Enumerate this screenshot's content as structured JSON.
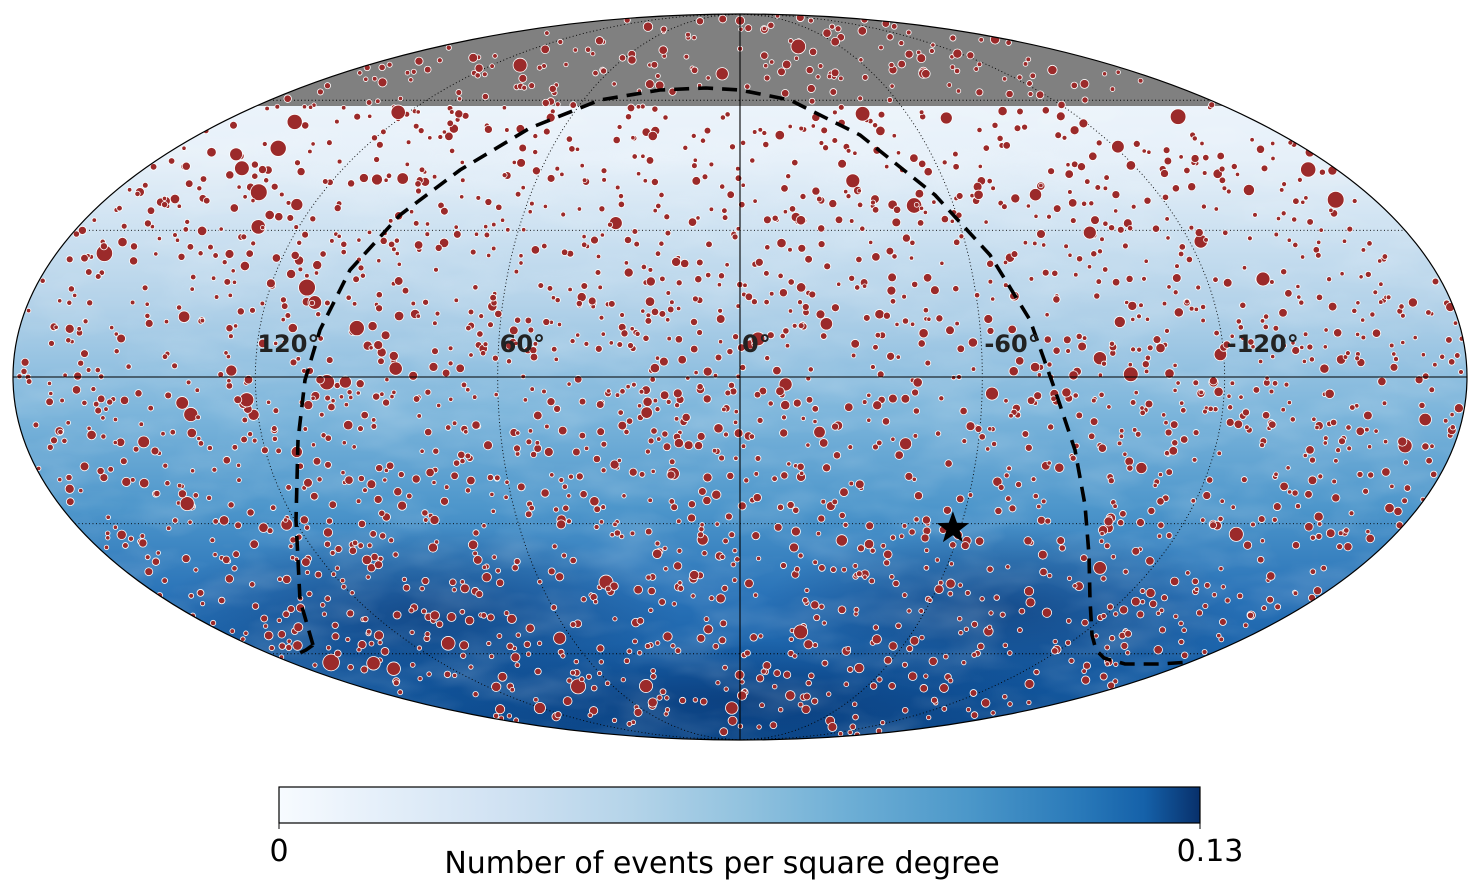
{
  "chart_data": {
    "type": "heatmap",
    "projection": "mollweide",
    "coordinate_system": "galactic",
    "longitude_labels": [
      "120°",
      "60°",
      "0°",
      "-60°",
      "-120°"
    ],
    "longitude_values": [
      120,
      60,
      0,
      -60,
      -120
    ],
    "meridians": [
      -120,
      -60,
      0,
      60,
      120
    ],
    "parallels": [
      -60,
      -30,
      0,
      30,
      60
    ],
    "colormap": "Blues",
    "colorbar": {
      "label": "Number of events per square degree",
      "min_label": "0",
      "max_label": "0.13",
      "range": [
        0,
        0.13
      ]
    },
    "masked_region": {
      "description": "field of view limit",
      "declination_above": 60,
      "color": "#808080"
    },
    "exposure_boundary": {
      "style": "dashed",
      "color": "#000000"
    },
    "marker": {
      "symbol": "star",
      "lon": -58,
      "lat": -31,
      "color": "#000000"
    },
    "events": {
      "color": "#9b2a2a",
      "edge_color": "#ffffff",
      "count_approx": 2600
    },
    "grid": true
  },
  "colors": {
    "low": "#f7fbff",
    "high": "#08306b",
    "event": "#9b2a2a",
    "mask": "#808080"
  }
}
